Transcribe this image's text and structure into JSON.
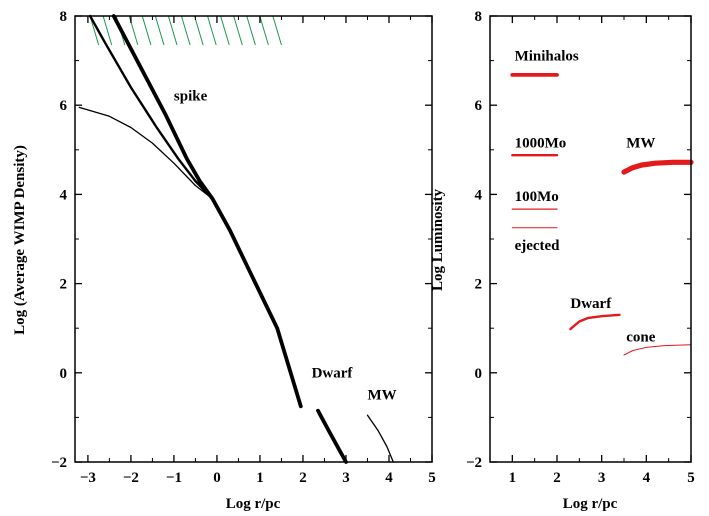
{
  "chart_data": [
    {
      "type": "line",
      "xlabel": "Log r/pc",
      "ylabel": "Log (Average WIMP Density)",
      "xlim": [
        -3.3,
        5
      ],
      "ylim": [
        -2,
        8
      ],
      "xticks": [
        "−3",
        "−2",
        "−1",
        "0",
        "1",
        "2",
        "3",
        "4",
        "5"
      ],
      "yticks": [
        "−2",
        "0",
        "2",
        "4",
        "6",
        "8"
      ],
      "annotations": [
        {
          "text": "spike",
          "x": -1.0,
          "y": 6.1
        },
        {
          "text": "Dwarf",
          "x": 2.2,
          "y": -0.1
        },
        {
          "text": "MW",
          "x": 3.5,
          "y": -0.6
        }
      ],
      "hatch": {
        "color": "#1a9a4a",
        "x_range": [
          -2.95,
          1.3
        ],
        "y_range": [
          7.35,
          8.0
        ]
      },
      "series": [
        {
          "weight": "thick",
          "points": [
            [
              -2.4,
              8.0
            ],
            [
              -1.8,
              6.9
            ],
            [
              -1.2,
              5.8
            ],
            [
              -0.7,
              4.8
            ],
            [
              -0.4,
              4.3
            ],
            [
              -0.1,
              3.9
            ],
            [
              0.3,
              3.2
            ],
            [
              0.8,
              2.2
            ],
            [
              1.4,
              1.0
            ],
            [
              1.95,
              -0.75
            ]
          ]
        },
        {
          "weight": "medium",
          "points": [
            [
              -2.95,
              8.0
            ],
            [
              -2.6,
              7.4
            ],
            [
              -2.0,
              6.4
            ],
            [
              -1.4,
              5.5
            ],
            [
              -0.9,
              4.8
            ],
            [
              -0.5,
              4.3
            ],
            [
              -0.1,
              3.9
            ]
          ]
        },
        {
          "weight": "thin",
          "points": [
            [
              -3.2,
              5.95
            ],
            [
              -2.5,
              5.75
            ],
            [
              -2.0,
              5.5
            ],
            [
              -1.5,
              5.15
            ],
            [
              -1.0,
              4.7
            ],
            [
              -0.5,
              4.2
            ],
            [
              -0.1,
              3.9
            ]
          ]
        },
        {
          "weight": "thick",
          "points": [
            [
              2.35,
              -0.85
            ],
            [
              2.6,
              -1.3
            ],
            [
              2.8,
              -1.65
            ],
            [
              3.0,
              -2.0
            ]
          ]
        },
        {
          "weight": "thin",
          "points": [
            [
              3.5,
              -0.95
            ],
            [
              3.75,
              -1.3
            ],
            [
              3.95,
              -1.65
            ],
            [
              4.1,
              -2.0
            ]
          ]
        }
      ]
    },
    {
      "type": "line",
      "xlabel": "Log r/pc",
      "ylabel": "Log Luminosity",
      "xlim": [
        0.5,
        5
      ],
      "ylim": [
        -2,
        8
      ],
      "xticks": [
        "1",
        "2",
        "3",
        "4",
        "5"
      ],
      "yticks": [
        "−2",
        "0",
        "2",
        "4",
        "6",
        "8"
      ],
      "line_color": "#e31a1c",
      "series": [
        {
          "name": "Minihalos",
          "label_pos": [
            1.05,
            7.0
          ],
          "weight": "thick",
          "points": [
            [
              1.0,
              6.68
            ],
            [
              2.0,
              6.68
            ]
          ]
        },
        {
          "name": "1000Mo",
          "label_pos": [
            1.05,
            5.05
          ],
          "weight": "medium",
          "points": [
            [
              1.0,
              4.88
            ],
            [
              2.0,
              4.88
            ]
          ]
        },
        {
          "name": "100Mo",
          "label_pos": [
            1.05,
            3.85
          ],
          "weight": "thin",
          "points": [
            [
              1.0,
              3.67
            ],
            [
              2.0,
              3.67
            ]
          ]
        },
        {
          "name": "ejected",
          "label_pos": [
            1.05,
            2.75
          ],
          "weight": "hair",
          "points": [
            [
              1.0,
              3.25
            ],
            [
              2.0,
              3.25
            ]
          ]
        },
        {
          "name": "MW",
          "label_pos": [
            3.55,
            5.05
          ],
          "weight": "xthick",
          "points": [
            [
              3.5,
              4.5
            ],
            [
              3.7,
              4.6
            ],
            [
              3.9,
              4.66
            ],
            [
              4.2,
              4.7
            ],
            [
              4.6,
              4.72
            ],
            [
              5.0,
              4.72
            ]
          ]
        },
        {
          "name": "Dwarf",
          "label_pos": [
            2.3,
            1.45
          ],
          "weight": "medium",
          "points": [
            [
              2.3,
              0.98
            ],
            [
              2.5,
              1.15
            ],
            [
              2.7,
              1.23
            ],
            [
              3.0,
              1.27
            ],
            [
              3.4,
              1.3
            ]
          ]
        },
        {
          "name": "cone",
          "label_pos": [
            3.55,
            0.7
          ],
          "weight": "hair",
          "points": [
            [
              3.5,
              0.4
            ],
            [
              3.7,
              0.5
            ],
            [
              4.0,
              0.57
            ],
            [
              4.4,
              0.61
            ],
            [
              5.0,
              0.63
            ]
          ]
        }
      ]
    }
  ]
}
